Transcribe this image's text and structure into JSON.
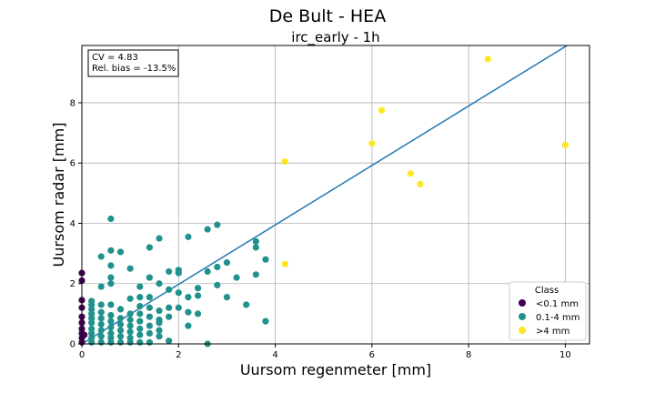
{
  "figure_title": "De Bult - HEA",
  "chart_data": {
    "type": "scatter",
    "title": "irc_early - 1h",
    "xlabel": "Uursom regenmeter [mm]",
    "ylabel": "Uursom radar [mm]",
    "xlim": [
      0,
      10.5
    ],
    "ylim": [
      0,
      9.9
    ],
    "xticks": [
      0,
      2,
      4,
      6,
      8,
      10
    ],
    "yticks": [
      0,
      2,
      4,
      6,
      8
    ],
    "grid": true,
    "stats_box": {
      "cv": "CV = 4.83",
      "bias": "Rel. bias = -13.5%"
    },
    "regression_line": {
      "slope": 0.9865,
      "intercept": 0.0,
      "color": "#1f77b4"
    },
    "legend": {
      "title": "Class",
      "placement": "lower-right"
    },
    "series": [
      {
        "name": "<0.1 mm",
        "color": "#440154",
        "points": [
          [
            0,
            0.05
          ],
          [
            0,
            0.2
          ],
          [
            0,
            0.35
          ],
          [
            0,
            0.5
          ],
          [
            0,
            0.7
          ],
          [
            0,
            0.9
          ],
          [
            0,
            1.2
          ],
          [
            0,
            1.45
          ],
          [
            0,
            2.1
          ],
          [
            0,
            2.35
          ],
          [
            0.05,
            0.3
          ]
        ]
      },
      {
        "name": "0.1-4 mm",
        "color": "#21918c",
        "points": [
          [
            0.2,
            0.05
          ],
          [
            0.2,
            0.2
          ],
          [
            0.2,
            0.35
          ],
          [
            0.2,
            0.5
          ],
          [
            0.2,
            0.7
          ],
          [
            0.2,
            0.85
          ],
          [
            0.2,
            1.0
          ],
          [
            0.2,
            1.15
          ],
          [
            0.2,
            1.3
          ],
          [
            0.2,
            1.42
          ],
          [
            0.4,
            0.05
          ],
          [
            0.4,
            0.25
          ],
          [
            0.4,
            0.45
          ],
          [
            0.4,
            0.65
          ],
          [
            0.4,
            0.85
          ],
          [
            0.4,
            1.05
          ],
          [
            0.4,
            1.3
          ],
          [
            0.4,
            1.9
          ],
          [
            0.4,
            2.9
          ],
          [
            0.6,
            0.05
          ],
          [
            0.6,
            0.2
          ],
          [
            0.6,
            0.35
          ],
          [
            0.6,
            0.55
          ],
          [
            0.6,
            0.75
          ],
          [
            0.6,
            0.95
          ],
          [
            0.6,
            1.3
          ],
          [
            0.6,
            2.0
          ],
          [
            0.6,
            2.2
          ],
          [
            0.6,
            2.6
          ],
          [
            0.6,
            3.1
          ],
          [
            0.6,
            4.15
          ],
          [
            0.8,
            0.05
          ],
          [
            0.8,
            0.25
          ],
          [
            0.8,
            0.45
          ],
          [
            0.8,
            0.65
          ],
          [
            0.8,
            0.85
          ],
          [
            0.8,
            1.15
          ],
          [
            0.8,
            3.05
          ],
          [
            1.0,
            0.05
          ],
          [
            1.0,
            0.2
          ],
          [
            1.0,
            0.4
          ],
          [
            1.0,
            0.6
          ],
          [
            1.0,
            0.8
          ],
          [
            1.0,
            1.0
          ],
          [
            1.0,
            1.5
          ],
          [
            1.0,
            2.5
          ],
          [
            1.2,
            0.05
          ],
          [
            1.2,
            0.3
          ],
          [
            1.2,
            0.5
          ],
          [
            1.2,
            0.75
          ],
          [
            1.2,
            1.0
          ],
          [
            1.2,
            1.25
          ],
          [
            1.2,
            1.55
          ],
          [
            1.2,
            1.9
          ],
          [
            1.4,
            0.05
          ],
          [
            1.4,
            0.35
          ],
          [
            1.4,
            0.6
          ],
          [
            1.4,
            0.9
          ],
          [
            1.4,
            1.2
          ],
          [
            1.4,
            1.55
          ],
          [
            1.4,
            2.2
          ],
          [
            1.4,
            3.2
          ],
          [
            1.6,
            0.25
          ],
          [
            1.6,
            0.45
          ],
          [
            1.6,
            0.7
          ],
          [
            1.6,
            0.8
          ],
          [
            1.6,
            1.1
          ],
          [
            1.6,
            2.0
          ],
          [
            1.6,
            3.5
          ],
          [
            1.8,
            0.1
          ],
          [
            1.8,
            0.9
          ],
          [
            1.8,
            1.2
          ],
          [
            1.8,
            1.8
          ],
          [
            1.8,
            2.4
          ],
          [
            2.0,
            1.2
          ],
          [
            2.0,
            1.7
          ],
          [
            2.0,
            2.35
          ],
          [
            2.0,
            2.45
          ],
          [
            2.2,
            0.6
          ],
          [
            2.2,
            1.05
          ],
          [
            2.2,
            1.55
          ],
          [
            2.2,
            3.55
          ],
          [
            2.4,
            1.0
          ],
          [
            2.4,
            1.6
          ],
          [
            2.4,
            1.85
          ],
          [
            2.6,
            0.0
          ],
          [
            2.6,
            2.4
          ],
          [
            2.6,
            3.8
          ],
          [
            2.8,
            1.95
          ],
          [
            2.8,
            2.55
          ],
          [
            2.8,
            3.95
          ],
          [
            3.0,
            1.55
          ],
          [
            3.0,
            2.7
          ],
          [
            3.2,
            2.2
          ],
          [
            3.4,
            1.3
          ],
          [
            3.6,
            2.3
          ],
          [
            3.6,
            3.2
          ],
          [
            3.6,
            3.4
          ],
          [
            3.8,
            0.75
          ],
          [
            3.8,
            2.8
          ]
        ]
      },
      {
        "name": ">4 mm",
        "color": "#fde725",
        "points": [
          [
            4.2,
            2.65
          ],
          [
            4.2,
            6.05
          ],
          [
            6.0,
            6.65
          ],
          [
            6.2,
            7.75
          ],
          [
            6.8,
            5.65
          ],
          [
            7.0,
            5.3
          ],
          [
            8.4,
            9.45
          ],
          [
            10.0,
            6.6
          ]
        ]
      }
    ]
  }
}
